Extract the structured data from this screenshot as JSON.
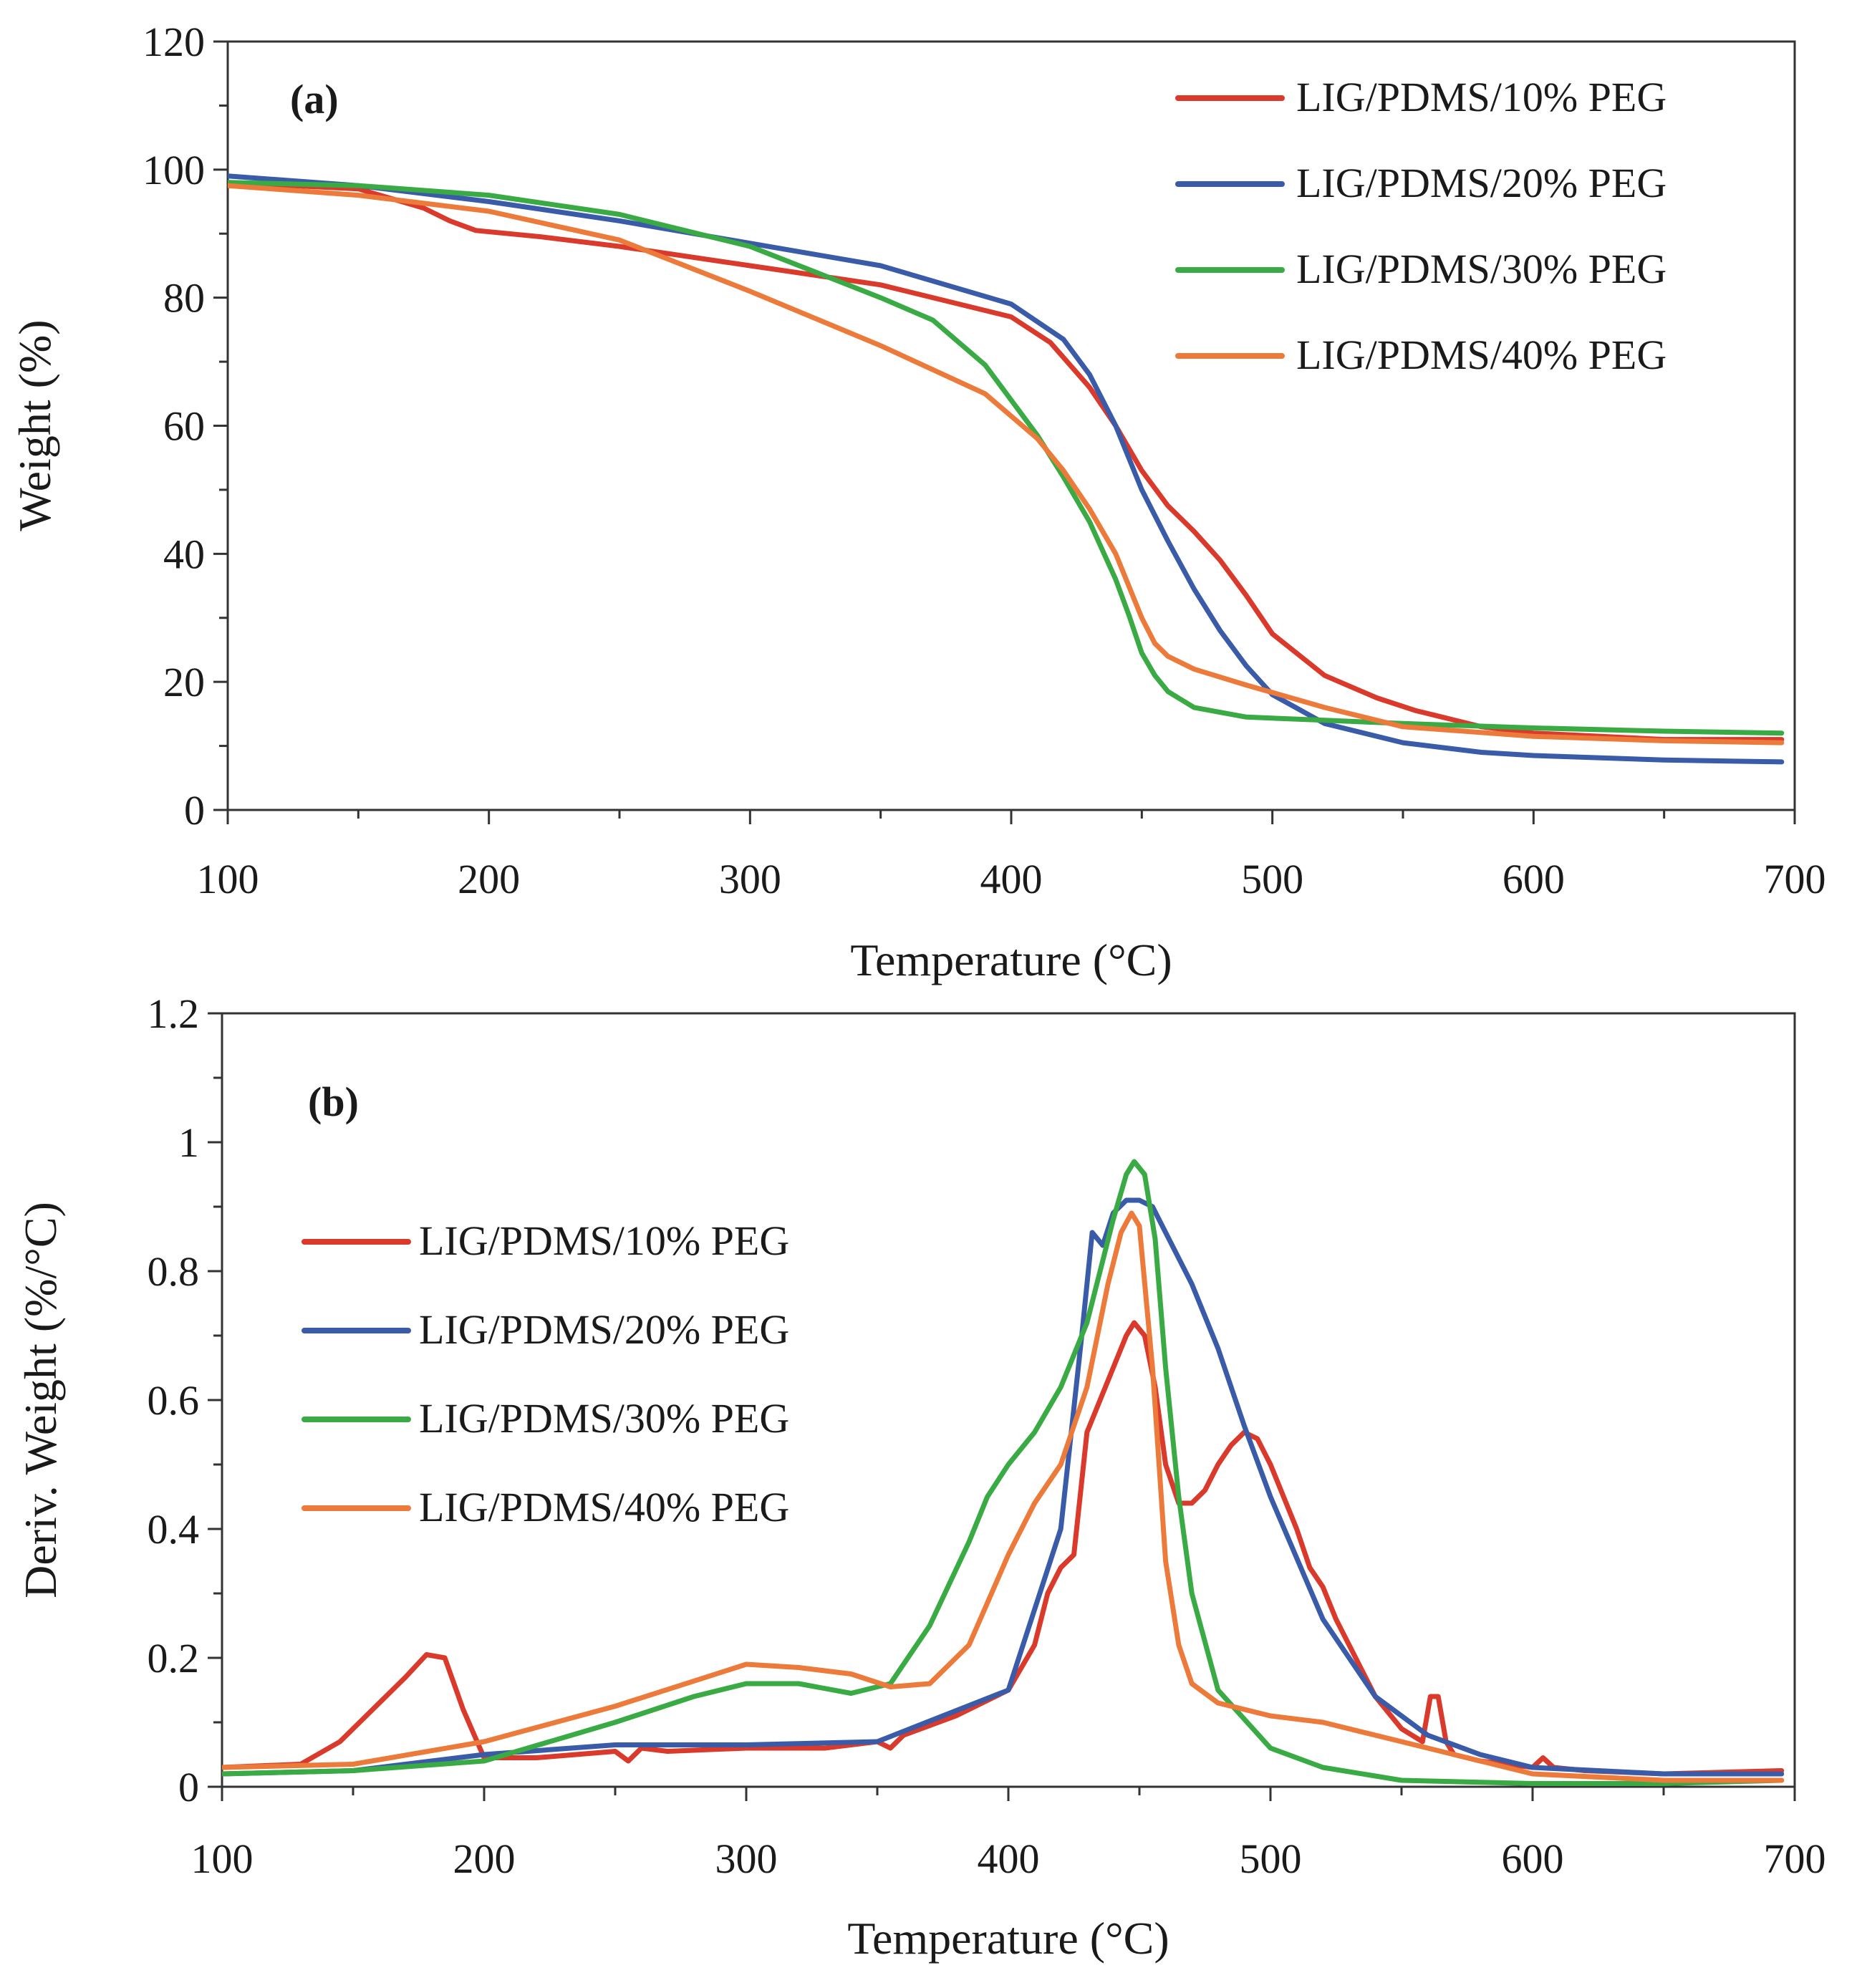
{
  "colors": {
    "LIG/PDMS/10% PEG": "#d93a2b",
    "LIG/PDMS/20% PEG": "#3a5ba8",
    "LIG/PDMS/30% PEG": "#3aaa45",
    "LIG/PDMS/40% PEG": "#ec7a3a"
  },
  "chart_data": [
    {
      "type": "line",
      "panel_label": "(a)",
      "title": "",
      "xlabel": "Temperature (°C)",
      "ylabel": "Weight (%)",
      "xlim": [
        100,
        700
      ],
      "ylim": [
        0,
        120
      ],
      "xticks": [
        100,
        200,
        300,
        400,
        500,
        600,
        700
      ],
      "yticks": [
        0,
        20,
        40,
        60,
        80,
        100,
        120
      ],
      "x_minor_step": 50,
      "y_minor_step": 10,
      "grid": false,
      "legend_position": "top-right",
      "series": [
        {
          "name": "LIG/PDMS/10% PEG",
          "x": [
            100,
            150,
            175,
            185,
            195,
            220,
            250,
            300,
            350,
            400,
            415,
            430,
            440,
            450,
            460,
            470,
            480,
            490,
            500,
            520,
            540,
            555,
            565,
            580,
            600,
            650,
            695
          ],
          "y": [
            98,
            97,
            94,
            92,
            90.5,
            89.5,
            88,
            85,
            82,
            77,
            73,
            66,
            60,
            53,
            47.5,
            43.5,
            39,
            33.5,
            27.5,
            21,
            17.5,
            15.5,
            14.5,
            13,
            12,
            11,
            11
          ]
        },
        {
          "name": "LIG/PDMS/20% PEG",
          "x": [
            100,
            150,
            200,
            250,
            300,
            350,
            400,
            420,
            430,
            440,
            450,
            460,
            470,
            480,
            490,
            500,
            520,
            550,
            580,
            600,
            650,
            695
          ],
          "y": [
            99,
            97.5,
            95,
            92,
            88.5,
            85,
            79,
            73.5,
            68,
            60,
            50,
            42,
            34.5,
            28,
            22.5,
            18,
            13.5,
            10.5,
            9,
            8.5,
            7.8,
            7.5
          ]
        },
        {
          "name": "LIG/PDMS/30% PEG",
          "x": [
            100,
            150,
            200,
            250,
            280,
            300,
            350,
            370,
            390,
            410,
            420,
            430,
            440,
            445,
            450,
            455,
            460,
            470,
            490,
            520,
            550,
            600,
            650,
            695
          ],
          "y": [
            98,
            97.5,
            96,
            93,
            90,
            88,
            80,
            76.5,
            69.5,
            58.5,
            52,
            45,
            36,
            30.5,
            24.5,
            21,
            18.5,
            16,
            14.5,
            14,
            13.5,
            12.8,
            12.3,
            12
          ]
        },
        {
          "name": "LIG/PDMS/40% PEG",
          "x": [
            100,
            150,
            200,
            250,
            300,
            350,
            390,
            410,
            420,
            430,
            440,
            445,
            450,
            455,
            460,
            470,
            490,
            520,
            550,
            600,
            650,
            695
          ],
          "y": [
            97.5,
            96,
            93.5,
            89,
            81,
            72.5,
            65,
            58,
            53,
            47,
            40,
            35,
            30,
            26,
            24,
            22,
            19.5,
            16,
            13,
            11.5,
            10.8,
            10.5
          ]
        }
      ]
    },
    {
      "type": "line",
      "panel_label": "(b)",
      "title": "",
      "xlabel": "Temperature (°C)",
      "ylabel": "Deriv. Weight (%/°C)",
      "xlim": [
        100,
        700
      ],
      "ylim": [
        0,
        1.2
      ],
      "xticks": [
        100,
        200,
        300,
        400,
        500,
        600,
        700
      ],
      "yticks": [
        0,
        0.2,
        0.4,
        0.6,
        0.8,
        1,
        1.2
      ],
      "ytick_labels": [
        "0",
        "0.2",
        "0.4",
        "0.6",
        "0.8",
        "1",
        "1.2"
      ],
      "x_minor_step": 50,
      "y_minor_step": 0.1,
      "grid": false,
      "legend_position": "center-left",
      "series": [
        {
          "name": "LIG/PDMS/10% PEG",
          "x": [
            100,
            130,
            145,
            160,
            170,
            178,
            185,
            192,
            200,
            220,
            250,
            255,
            260,
            270,
            300,
            330,
            350,
            355,
            360,
            380,
            400,
            410,
            415,
            420,
            425,
            430,
            435,
            440,
            445,
            448,
            452,
            456,
            460,
            465,
            470,
            475,
            480,
            485,
            490,
            495,
            500,
            505,
            510,
            515,
            520,
            525,
            530,
            540,
            550,
            558,
            561,
            564,
            567,
            570,
            580,
            600,
            604,
            608,
            620,
            650,
            695
          ],
          "y": [
            0.03,
            0.035,
            0.07,
            0.13,
            0.17,
            0.205,
            0.2,
            0.12,
            0.045,
            0.045,
            0.055,
            0.04,
            0.06,
            0.055,
            0.06,
            0.06,
            0.07,
            0.06,
            0.08,
            0.11,
            0.15,
            0.22,
            0.3,
            0.34,
            0.36,
            0.55,
            0.6,
            0.65,
            0.7,
            0.72,
            0.7,
            0.62,
            0.5,
            0.44,
            0.44,
            0.46,
            0.5,
            0.53,
            0.55,
            0.54,
            0.5,
            0.45,
            0.4,
            0.34,
            0.31,
            0.26,
            0.22,
            0.14,
            0.09,
            0.07,
            0.14,
            0.14,
            0.07,
            0.05,
            0.04,
            0.03,
            0.045,
            0.03,
            0.025,
            0.02,
            0.025
          ]
        },
        {
          "name": "LIG/PDMS/20% PEG",
          "x": [
            100,
            150,
            200,
            250,
            300,
            350,
            400,
            420,
            428,
            432,
            436,
            440,
            445,
            450,
            455,
            460,
            470,
            480,
            490,
            500,
            520,
            540,
            560,
            580,
            600,
            650,
            695
          ],
          "y": [
            0.02,
            0.025,
            0.05,
            0.065,
            0.065,
            0.07,
            0.15,
            0.4,
            0.7,
            0.86,
            0.84,
            0.89,
            0.91,
            0.91,
            0.9,
            0.86,
            0.78,
            0.68,
            0.56,
            0.45,
            0.26,
            0.14,
            0.08,
            0.05,
            0.03,
            0.02,
            0.02
          ]
        },
        {
          "name": "LIG/PDMS/30% PEG",
          "x": [
            100,
            150,
            200,
            250,
            280,
            300,
            320,
            340,
            355,
            370,
            385,
            392,
            400,
            410,
            420,
            430,
            440,
            445,
            448,
            452,
            456,
            460,
            465,
            470,
            480,
            500,
            520,
            550,
            600,
            650,
            695
          ],
          "y": [
            0.02,
            0.025,
            0.04,
            0.1,
            0.14,
            0.16,
            0.16,
            0.145,
            0.16,
            0.25,
            0.38,
            0.45,
            0.5,
            0.55,
            0.62,
            0.72,
            0.88,
            0.95,
            0.97,
            0.95,
            0.85,
            0.65,
            0.45,
            0.3,
            0.15,
            0.06,
            0.03,
            0.01,
            0.005,
            0.005,
            0.01
          ]
        },
        {
          "name": "LIG/PDMS/40% PEG",
          "x": [
            100,
            150,
            200,
            250,
            300,
            320,
            340,
            355,
            370,
            385,
            400,
            410,
            420,
            430,
            438,
            443,
            447,
            450,
            455,
            460,
            465,
            470,
            480,
            500,
            520,
            540,
            560,
            580,
            600,
            650,
            695
          ],
          "y": [
            0.03,
            0.035,
            0.07,
            0.125,
            0.19,
            0.185,
            0.175,
            0.155,
            0.16,
            0.22,
            0.36,
            0.44,
            0.5,
            0.62,
            0.78,
            0.86,
            0.89,
            0.87,
            0.65,
            0.35,
            0.22,
            0.16,
            0.13,
            0.11,
            0.1,
            0.08,
            0.06,
            0.04,
            0.02,
            0.01,
            0.01
          ]
        }
      ]
    }
  ]
}
